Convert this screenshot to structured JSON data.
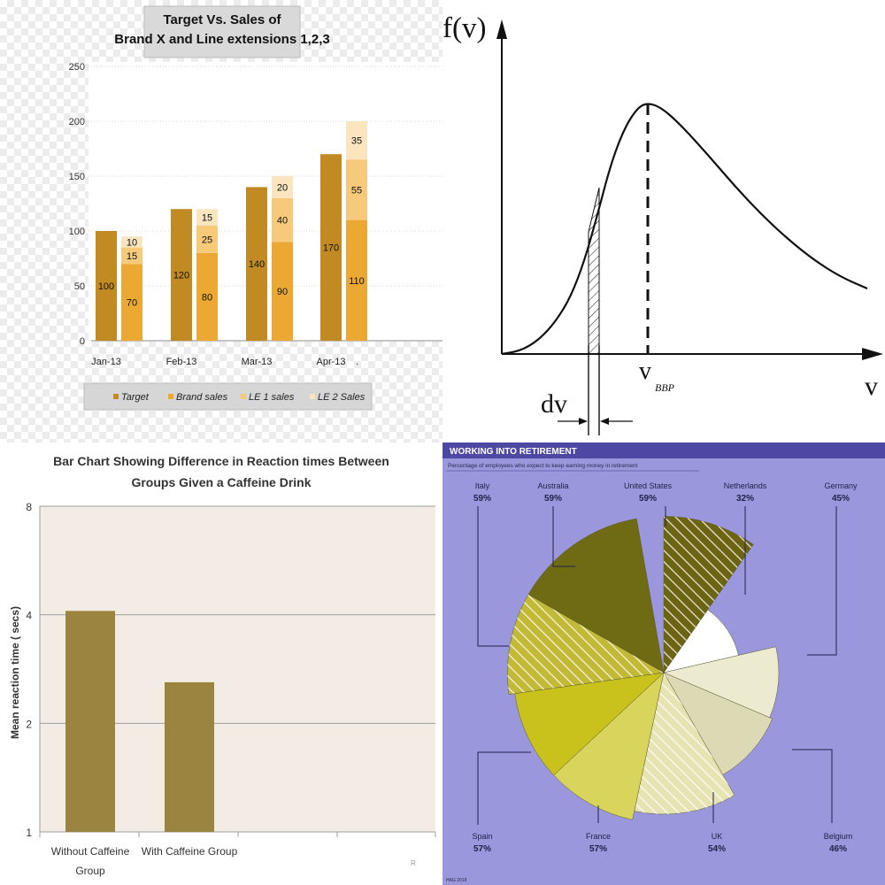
{
  "chart_data": [
    {
      "type": "bar",
      "title": "Target Vs. Sales of Brand X and Line extensions 1,2,3",
      "title_lines": [
        "Target Vs. Sales of",
        "Brand X  and Line extensions 1,2,3"
      ],
      "categories": [
        "Jan-13",
        "Feb-13",
        "Mar-13",
        "Apr-13"
      ],
      "extra_tick": ".",
      "yticks": [
        "0",
        "50",
        "100",
        "150",
        "200",
        "250"
      ],
      "ylim": [
        0,
        250
      ],
      "series": [
        {
          "name": "Target",
          "values": [
            100,
            120,
            140,
            170
          ],
          "color": "#c28a22",
          "stack": "target"
        },
        {
          "name": "Brand sales",
          "values": [
            70,
            80,
            90,
            110
          ],
          "color": "#eba832",
          "stack": "sales"
        },
        {
          "name": "LE 1 sales",
          "values": [
            15,
            25,
            40,
            55
          ],
          "color": "#f7c97a",
          "stack": "sales"
        },
        {
          "name": "LE 2 Sales",
          "values": [
            10,
            15,
            20,
            35
          ],
          "color": "#fbe5bf",
          "stack": "sales"
        }
      ],
      "data_labels": [
        [
          "100",
          "120",
          "140",
          "170"
        ],
        [
          "70",
          "80",
          "90",
          "110"
        ],
        [
          "15",
          "25",
          "40",
          "55"
        ],
        [
          "10",
          "15",
          "20",
          "35"
        ]
      ],
      "grid": true,
      "legend_position": "bottom"
    },
    {
      "type": "line",
      "ylabel": "f(v)",
      "xlabel": "v",
      "annotations": {
        "peak_label_main": "v",
        "peak_label_sub": "BBP",
        "interval_label": "dv"
      },
      "curve": "right-skewed unimodal distribution with hatched area under the curve over interval dv and dashed line at the peak"
    },
    {
      "type": "bar",
      "title": "Bar Chart Showing Difference in Reaction times Between Groups Given a Caffeine Drink",
      "title_lines": [
        "Bar Chart Showing Difference in Reaction times Between",
        "Groups Given a Caffeine Drink"
      ],
      "ylabel": "Mean reaction time ( secs)",
      "categories": [
        "Without Caffeine Group",
        "With Caffeine Group"
      ],
      "category_lines": [
        [
          "Without Caffeine",
          "Group"
        ],
        [
          "With Caffeine Group"
        ]
      ],
      "values": [
        4.1,
        2.6
      ],
      "yticks": [
        "1",
        "2",
        "4",
        "8"
      ],
      "ylim": [
        0,
        8
      ],
      "grid": true,
      "color": "#9a843f",
      "corner_mark": "R"
    },
    {
      "type": "pie",
      "title": "WORKING INTO RETIREMENT",
      "subtitle": "Percentage of employees who expect to keep earning money in retirement",
      "categories": [
        "United States",
        "Netherlands",
        "Germany",
        "Belgium",
        "UK",
        "France",
        "Spain",
        "Italy",
        "Australia"
      ],
      "values": [
        59,
        32,
        45,
        46,
        54,
        57,
        57,
        59,
        59
      ],
      "value_labels": [
        "59%",
        "32%",
        "45%",
        "46%",
        "54%",
        "57%",
        "57%",
        "59%",
        "59%"
      ],
      "colors": [
        "#6c6412",
        "#ffffff",
        "#ecebd0",
        "#dcdab4",
        "#e7e4b4",
        "#d9d45c",
        "#c9c21c",
        "#c2b936",
        "#6f6a14"
      ],
      "hatched": [
        true,
        false,
        false,
        false,
        true,
        false,
        false,
        true,
        false
      ],
      "source": "HAG 2018"
    }
  ]
}
